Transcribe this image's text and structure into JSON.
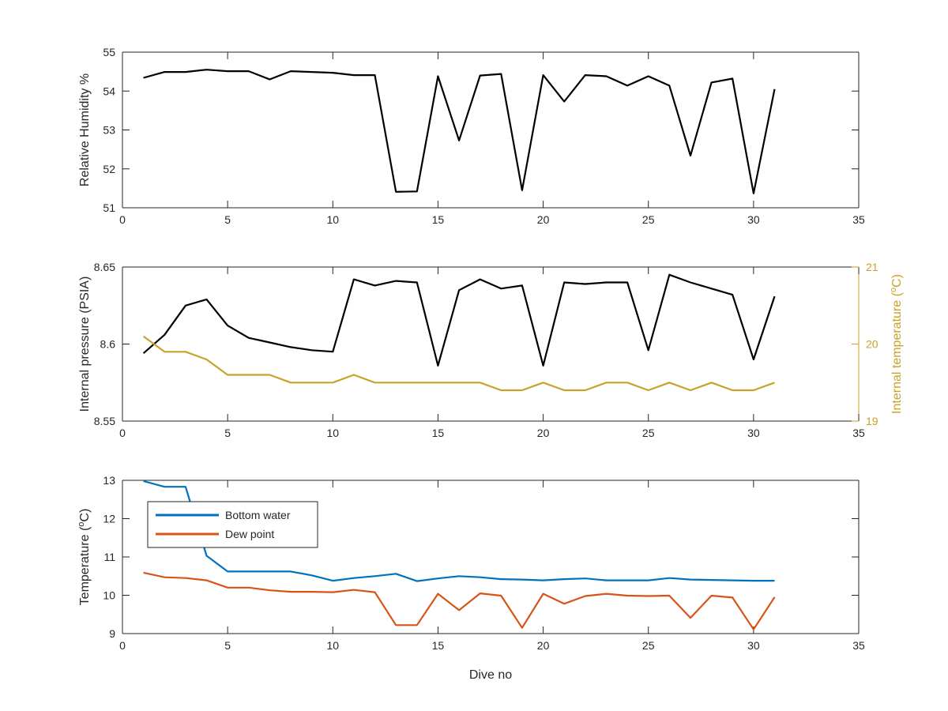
{
  "chart_data": [
    {
      "type": "line",
      "xlabel": "",
      "ylabel": "Relative Humidity %",
      "xlim": [
        0,
        35
      ],
      "ylim": [
        51,
        55
      ],
      "xticks": [
        0,
        5,
        10,
        15,
        20,
        25,
        30,
        35
      ],
      "yticks": [
        51,
        52,
        53,
        54,
        55
      ],
      "grid": false,
      "series": [
        {
          "color": "#000000",
          "x": [
            1,
            2,
            3,
            4,
            5,
            6,
            7,
            8,
            9,
            10,
            11,
            12,
            13,
            14,
            15,
            16,
            17,
            18,
            19,
            20,
            21,
            22,
            23,
            24,
            25,
            26,
            27,
            28,
            29,
            30,
            31
          ],
          "y": [
            54.34,
            54.49,
            54.49,
            54.55,
            54.51,
            54.51,
            54.3,
            54.51,
            54.49,
            54.47,
            54.41,
            54.41,
            51.41,
            51.42,
            54.38,
            52.73,
            54.4,
            54.44,
            51.45,
            54.41,
            53.73,
            54.41,
            54.38,
            54.14,
            54.38,
            54.14,
            52.34,
            54.22,
            54.32,
            51.37,
            54.05
          ]
        }
      ]
    },
    {
      "type": "line",
      "xlabel": "",
      "ylabel": "Internal pressure (PSIA)",
      "ylabel_right": "Internal temperature (°C)",
      "xlim": [
        0,
        35
      ],
      "ylim": [
        8.55,
        8.65
      ],
      "ylim_right": [
        19,
        21
      ],
      "xticks": [
        0,
        5,
        10,
        15,
        20,
        25,
        30,
        35
      ],
      "yticks": [
        8.55,
        8.6,
        8.65
      ],
      "yticks_right": [
        19,
        20,
        21
      ],
      "grid": false,
      "series": [
        {
          "axis": "left",
          "color": "#000000",
          "x": [
            1,
            2,
            3,
            4,
            5,
            6,
            7,
            8,
            9,
            10,
            11,
            12,
            13,
            14,
            15,
            16,
            17,
            18,
            19,
            20,
            21,
            22,
            23,
            24,
            25,
            26,
            27,
            28,
            29,
            30,
            31
          ],
          "y": [
            8.594,
            8.606,
            8.625,
            8.629,
            8.612,
            8.604,
            8.601,
            8.598,
            8.596,
            8.595,
            8.642,
            8.638,
            8.641,
            8.64,
            8.586,
            8.635,
            8.642,
            8.636,
            8.638,
            8.586,
            8.64,
            8.639,
            8.64,
            8.64,
            8.596,
            8.645,
            8.64,
            8.636,
            8.632,
            8.59,
            8.631
          ]
        },
        {
          "axis": "right",
          "color": "#C9A227",
          "x": [
            1,
            2,
            3,
            4,
            5,
            6,
            7,
            8,
            9,
            10,
            11,
            12,
            13,
            14,
            15,
            16,
            17,
            18,
            19,
            20,
            21,
            22,
            23,
            24,
            25,
            26,
            27,
            28,
            29,
            30,
            31
          ],
          "y": [
            20.1,
            19.9,
            19.9,
            19.8,
            19.6,
            19.6,
            19.6,
            19.5,
            19.5,
            19.5,
            19.6,
            19.5,
            19.5,
            19.5,
            19.5,
            19.5,
            19.5,
            19.4,
            19.4,
            19.5,
            19.4,
            19.4,
            19.5,
            19.5,
            19.4,
            19.5,
            19.4,
            19.5,
            19.4,
            19.4,
            19.5
          ]
        }
      ]
    },
    {
      "type": "line",
      "xlabel": "Dive no",
      "ylabel": "Temperature (°C)",
      "xlim": [
        0,
        35
      ],
      "ylim": [
        9,
        13
      ],
      "xticks": [
        0,
        5,
        10,
        15,
        20,
        25,
        30,
        35
      ],
      "yticks": [
        9,
        10,
        11,
        12,
        13
      ],
      "grid": false,
      "legend": "top-left",
      "series": [
        {
          "name": "Bottom water",
          "color": "#0072BD",
          "x": [
            1,
            2,
            3,
            4,
            5,
            6,
            7,
            8,
            9,
            10,
            11,
            12,
            13,
            14,
            15,
            16,
            17,
            18,
            19,
            20,
            21,
            22,
            23,
            24,
            25,
            26,
            27,
            28,
            29,
            30,
            31
          ],
          "y": [
            12.98,
            12.83,
            12.83,
            11.03,
            10.62,
            10.62,
            10.62,
            10.62,
            10.52,
            10.38,
            10.45,
            10.5,
            10.56,
            10.37,
            10.44,
            10.5,
            10.47,
            10.42,
            10.41,
            10.39,
            10.42,
            10.44,
            10.39,
            10.39,
            10.39,
            10.45,
            10.41,
            10.4,
            10.39,
            10.38,
            10.38
          ]
        },
        {
          "name": "Dew point",
          "color": "#D95319",
          "x": [
            1,
            2,
            3,
            4,
            5,
            6,
            7,
            8,
            9,
            10,
            11,
            12,
            13,
            14,
            15,
            16,
            17,
            18,
            19,
            20,
            21,
            22,
            23,
            24,
            25,
            26,
            27,
            28,
            29,
            30,
            31
          ],
          "y": [
            10.59,
            10.47,
            10.45,
            10.39,
            10.2,
            10.2,
            10.13,
            10.09,
            10.09,
            10.08,
            10.14,
            10.08,
            9.22,
            9.22,
            10.04,
            9.61,
            10.05,
            9.99,
            9.15,
            10.04,
            9.78,
            9.98,
            10.04,
            9.99,
            9.98,
            9.99,
            9.41,
            9.99,
            9.94,
            9.11,
            9.95
          ]
        }
      ]
    }
  ]
}
